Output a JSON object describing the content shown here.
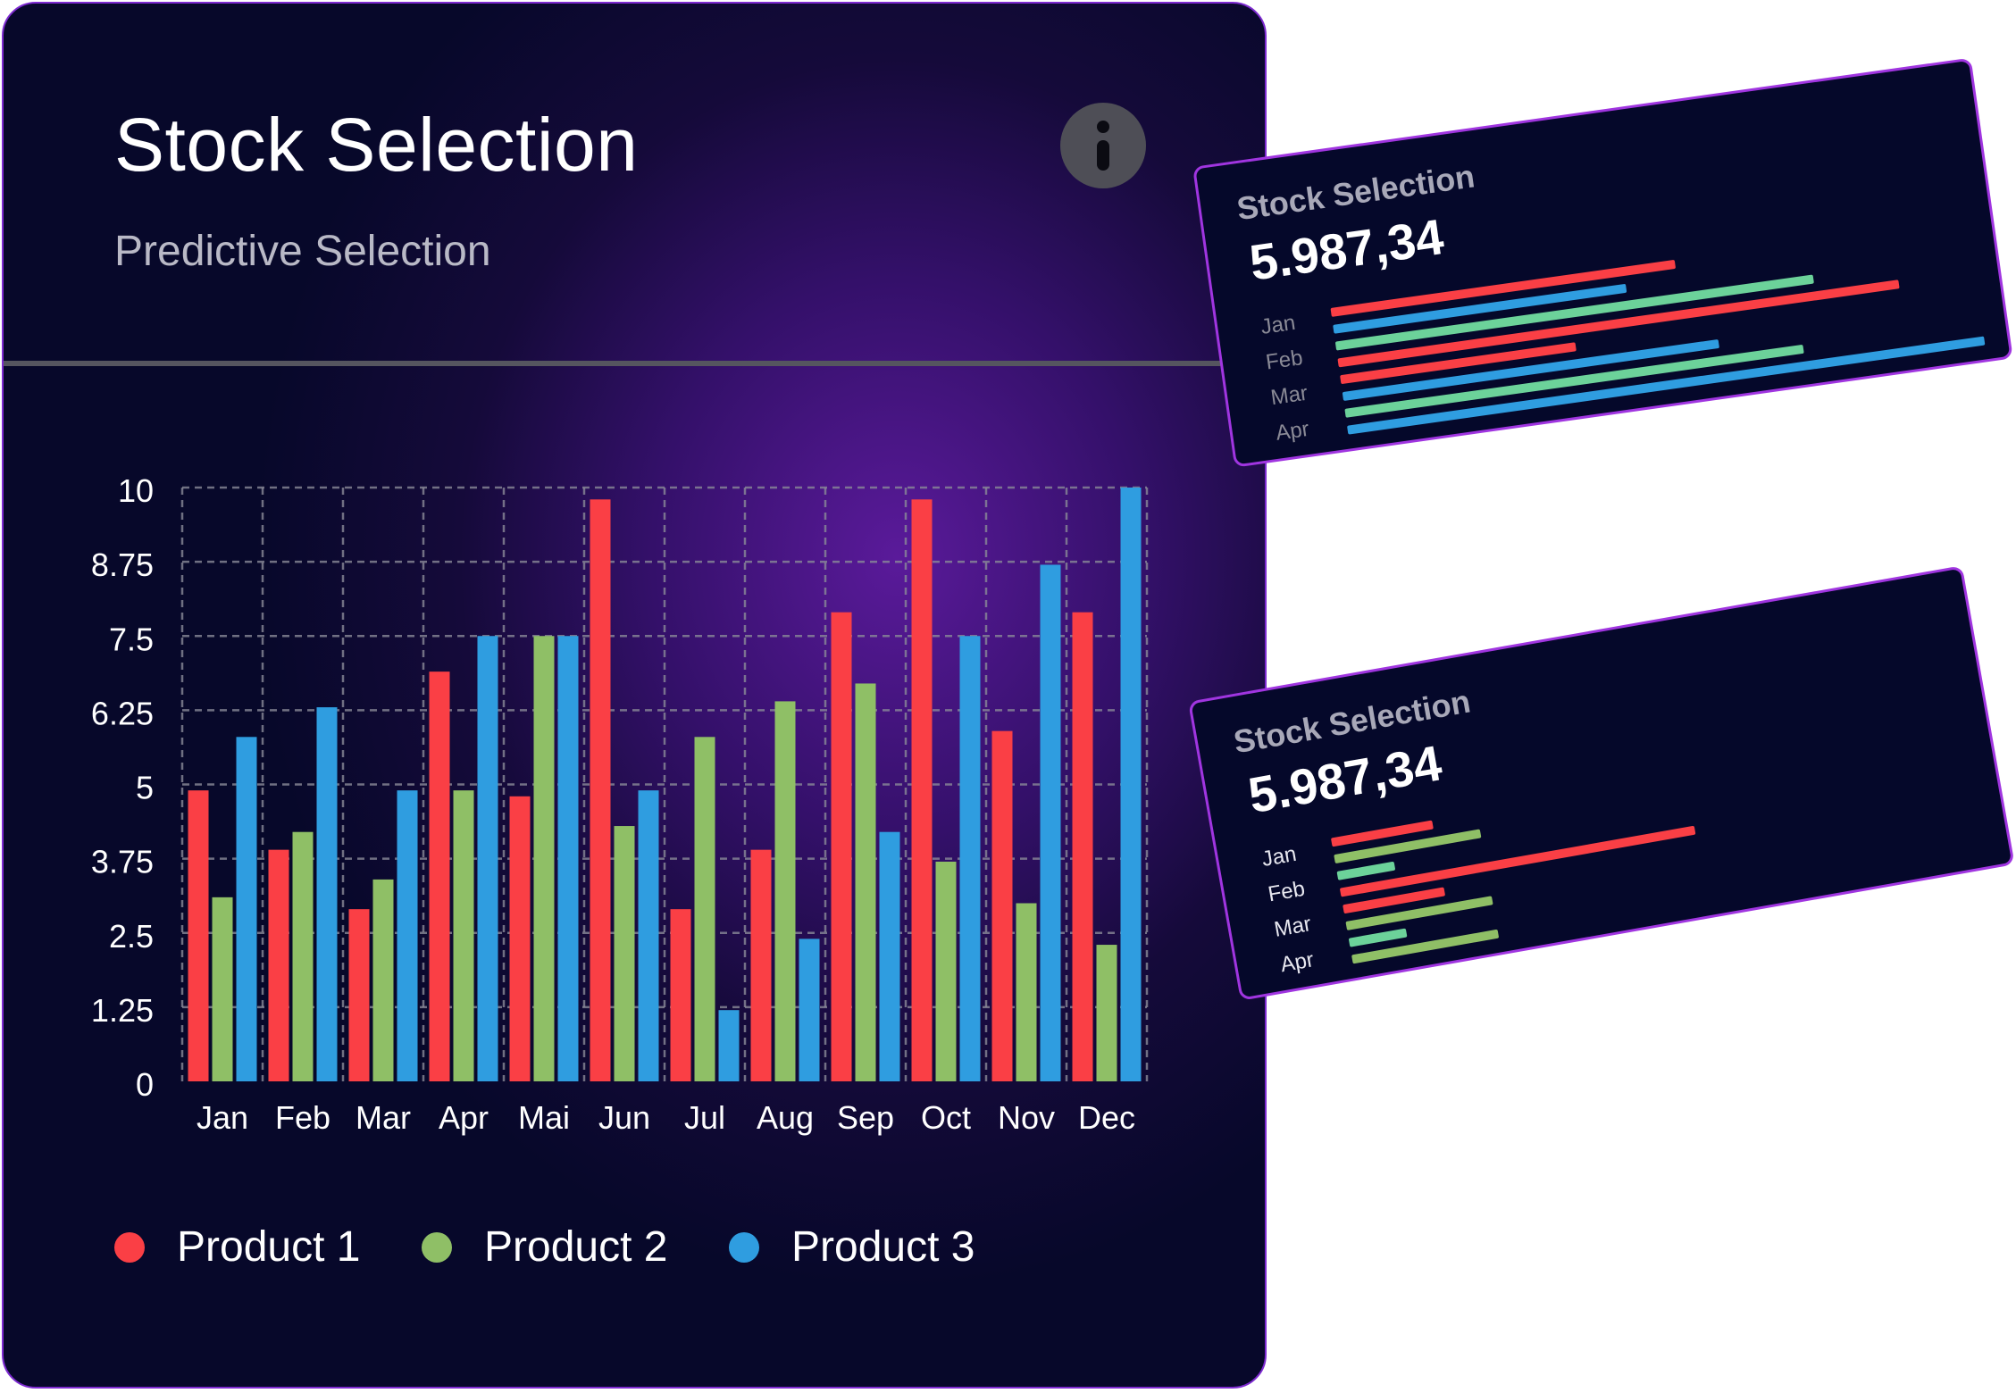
{
  "main_card": {
    "title": "Stock Selection",
    "subtitle": "Predictive Selection",
    "info_icon": "info-icon"
  },
  "chart_data": {
    "type": "bar",
    "categories": [
      "Jan",
      "Feb",
      "Mar",
      "Apr",
      "Mai",
      "Jun",
      "Jul",
      "Aug",
      "Sep",
      "Oct",
      "Nov",
      "Dec"
    ],
    "series": [
      {
        "name": "Product 1",
        "color": "#fa3f45",
        "values": [
          4.9,
          3.9,
          2.9,
          6.9,
          4.8,
          9.8,
          2.9,
          3.9,
          7.9,
          9.8,
          5.9,
          7.9
        ]
      },
      {
        "name": "Product 2",
        "color": "#8fbf66",
        "values": [
          3.1,
          4.2,
          3.4,
          4.9,
          7.5,
          4.3,
          5.8,
          6.4,
          6.7,
          3.7,
          3.0,
          2.3
        ]
      },
      {
        "name": "Product 3",
        "color": "#2f9de0",
        "values": [
          5.8,
          6.3,
          4.9,
          7.5,
          7.5,
          4.9,
          1.2,
          2.4,
          4.2,
          7.5,
          8.7,
          10.0
        ]
      }
    ],
    "y_ticks": [
      "0",
      "1.25",
      "2.5",
      "3.75",
      "5",
      "6.25",
      "7.5",
      "8.75",
      "10"
    ],
    "ylim": [
      0,
      10
    ],
    "grid": true,
    "legend_position": "bottom"
  },
  "mini_cards": [
    {
      "title": "Stock Selection",
      "value": "5.987,34",
      "months": [
        "Jan",
        "Feb",
        "Mar",
        "Apr"
      ],
      "month_color": "#8a8a96",
      "chart_data": {
        "type": "bar",
        "orientation": "horizontal",
        "bars": [
          {
            "color": "#fa3f45",
            "value": 0.54
          },
          {
            "color": "#2f9de0",
            "value": 0.46
          },
          {
            "color": "#6cd29a",
            "value": 0.75
          },
          {
            "color": "#fa3f45",
            "value": 0.88
          },
          {
            "color": "#fa3f45",
            "value": 0.37
          },
          {
            "color": "#2f9de0",
            "value": 0.59
          },
          {
            "color": "#6cd29a",
            "value": 0.72
          },
          {
            "color": "#2f9de0",
            "value": 1.0
          }
        ]
      }
    },
    {
      "title": "Stock Selection",
      "value": "5.987,34",
      "months": [
        "Jan",
        "Feb",
        "Mar",
        "Apr"
      ],
      "month_color": "#e8e8f0",
      "chart_data": {
        "type": "bar",
        "orientation": "horizontal",
        "bars": [
          {
            "color": "#fa3f45",
            "value": 0.16
          },
          {
            "color": "#8fbf66",
            "value": 0.23
          },
          {
            "color": "#6cd29a",
            "value": 0.09
          },
          {
            "color": "#fa3f45",
            "value": 0.56
          },
          {
            "color": "#fa3f45",
            "value": 0.16
          },
          {
            "color": "#8fbf66",
            "value": 0.23
          },
          {
            "color": "#6cd29a",
            "value": 0.09
          },
          {
            "color": "#8fbf66",
            "value": 0.23
          }
        ]
      }
    }
  ]
}
